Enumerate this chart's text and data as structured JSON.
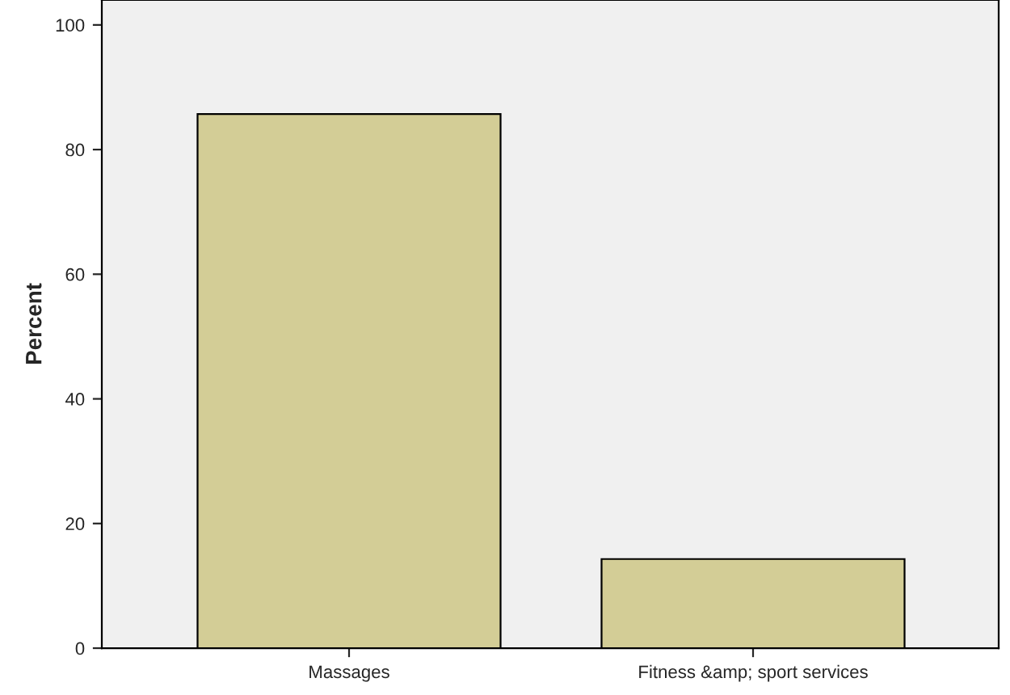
{
  "chart_data": {
    "type": "bar",
    "ylabel": "Percent",
    "categories": [
      "Massages",
      "Fitness &amp; sport services"
    ],
    "values": [
      85.7,
      14.3
    ],
    "color": "#d3cd96",
    "ylim": [
      0,
      104
    ],
    "yticks": [
      0,
      20,
      40,
      60,
      80,
      100
    ],
    "grid": false
  }
}
